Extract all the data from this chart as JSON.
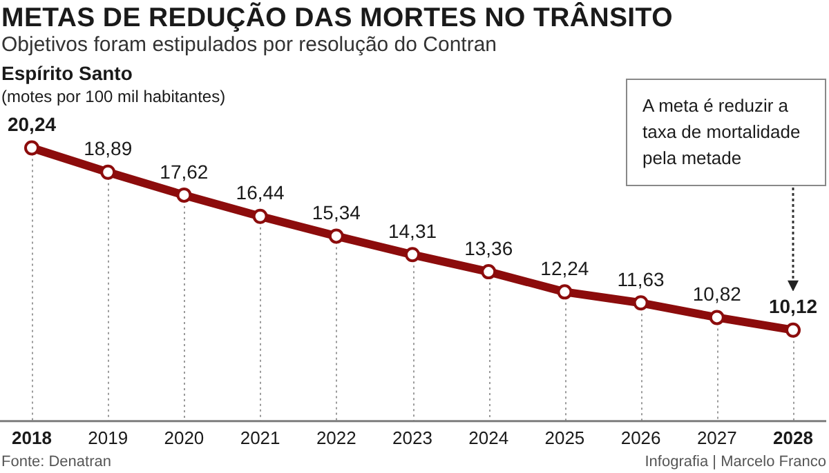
{
  "chart_data": {
    "type": "line",
    "title": "METAS DE REDUÇÃO DAS MORTES NO TRÂNSITO",
    "subtitle": "Objetivos foram estipulados por resolução do Contran",
    "ylabel": "(motes por 100 mil habitantes)",
    "categories": [
      "2018",
      "2019",
      "2020",
      "2021",
      "2022",
      "2023",
      "2024",
      "2025",
      "2026",
      "2027",
      "2028"
    ],
    "series": [
      {
        "color": "#8c0c0c",
        "values": [
          20.24,
          18.89,
          17.62,
          16.44,
          15.34,
          14.31,
          13.36,
          12.24,
          11.63,
          10.82,
          10.12
        ],
        "value_labels": [
          "20,24",
          "18,89",
          "17,62",
          "16,44",
          "15,34",
          "14,31",
          "13,36",
          "12,24",
          "11,63",
          "10,82",
          "10,12"
        ]
      }
    ],
    "tick_labels": "x",
    "grid": "x",
    "marker": "circle",
    "line_style": "solid",
    "annotations": [
      "Espírito Santo",
      "A meta é reduzir a taxa de mortalidade pela metade",
      "Fonte: Denatran",
      "Infografia | Marcelo Franco"
    ]
  }
}
